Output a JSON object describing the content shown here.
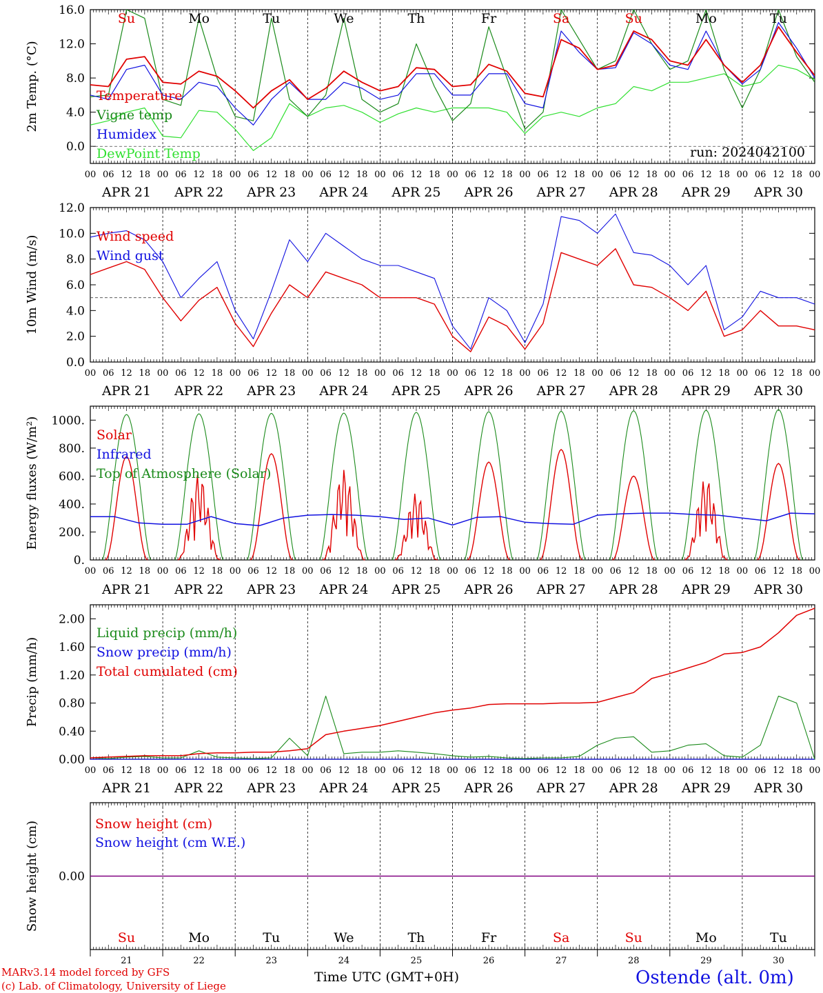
{
  "run_label": "run: 2024042100",
  "days": [
    "Su",
    "Mo",
    "Tu",
    "We",
    "Th",
    "Fr",
    "Sa",
    "Su",
    "Mo",
    "Tu"
  ],
  "day_colors": [
    "#e00000",
    "#000000",
    "#000000",
    "#000000",
    "#000000",
    "#000000",
    "#e00000",
    "#e00000",
    "#000000",
    "#000000"
  ],
  "date_labels": [
    "APR 21",
    "APR 22",
    "APR 23",
    "APR 24",
    "APR 25",
    "APR 26",
    "APR 27",
    "APR 28",
    "APR 29",
    "APR 30"
  ],
  "hour_ticks": [
    "00",
    "06",
    "12",
    "18"
  ],
  "day_numbers": [
    "21",
    "22",
    "23",
    "24",
    "25",
    "26",
    "27",
    "28",
    "29",
    "30"
  ],
  "xlabel": "Time UTC (GMT+0H)",
  "footer": {
    "line1": "MARv3.14 model forced by GFS",
    "line2": "(c) Lab. of Climatology, University of Liege",
    "station": "Ostende (alt. 0m)"
  },
  "colors": {
    "red": "#e00000",
    "green": "#1a8a1a",
    "blue": "#1010e0",
    "lightgreen": "#30e030",
    "purple": "#800080"
  },
  "chart_data": [
    {
      "type": "line",
      "ylabel": "2m Temp. (°C)",
      "ylim": [
        -2,
        16
      ],
      "yticks": [
        "16.0",
        "12.0",
        "8.0",
        "4.0",
        "0.0"
      ],
      "ytick_values": [
        16,
        12,
        8,
        4,
        0
      ],
      "ref_line": 0,
      "x_hours": [
        0,
        6,
        12,
        18,
        24,
        30,
        36,
        42,
        48,
        54,
        60,
        66,
        72,
        78,
        84,
        90,
        96,
        102,
        108,
        114,
        120,
        126,
        132,
        138,
        144,
        150,
        156,
        162,
        168,
        174,
        180,
        186,
        192,
        198,
        204,
        210,
        216,
        222,
        228,
        234,
        240
      ],
      "series": [
        {
          "name": "Temperature",
          "color": "red",
          "values": [
            7.2,
            7.0,
            10.2,
            10.5,
            7.5,
            7.3,
            8.8,
            8.2,
            6.5,
            4.5,
            6.5,
            7.8,
            5.5,
            6.8,
            8.8,
            7.5,
            6.5,
            7.0,
            9.2,
            9.0,
            7.0,
            7.2,
            9.6,
            8.8,
            6.2,
            5.8,
            12.5,
            11.5,
            9.0,
            9.5,
            13.5,
            12.5,
            10.0,
            9.5,
            12.5,
            9.5,
            7.5,
            9.5,
            14.0,
            11.0,
            8.3
          ]
        },
        {
          "name": "Vigne temp",
          "color": "green",
          "values": [
            5.8,
            6.0,
            16.0,
            15.0,
            5.5,
            4.8,
            15.0,
            8.0,
            3.5,
            3.0,
            15.0,
            5.5,
            3.5,
            6.0,
            15.0,
            5.5,
            4.0,
            5.0,
            12.0,
            7.0,
            3.0,
            5.0,
            14.0,
            8.0,
            2.0,
            4.0,
            16.0,
            12.5,
            9.0,
            10.0,
            16.0,
            12.0,
            9.0,
            10.0,
            16.0,
            9.0,
            4.5,
            9.0,
            16.0,
            10.5,
            7.5
          ]
        },
        {
          "name": "Humidex",
          "color": "blue",
          "values": [
            6.0,
            5.5,
            9.0,
            9.5,
            6.0,
            5.5,
            7.5,
            7.0,
            4.5,
            2.5,
            5.5,
            7.5,
            5.5,
            5.5,
            7.5,
            6.8,
            5.5,
            6.0,
            8.5,
            8.5,
            6.0,
            6.0,
            8.5,
            8.5,
            5.0,
            4.5,
            13.5,
            11.0,
            9.0,
            9.2,
            13.3,
            12.0,
            9.5,
            9.0,
            13.5,
            9.5,
            7.3,
            9.0,
            14.5,
            11.5,
            8.0
          ]
        },
        {
          "name": "DewPoint Temp",
          "color": "lightgreen",
          "values": [
            2.5,
            3.0,
            4.0,
            4.5,
            1.2,
            1.0,
            4.2,
            4.0,
            2.0,
            -0.5,
            1.0,
            5.0,
            3.5,
            4.5,
            4.8,
            4.0,
            2.8,
            3.8,
            4.5,
            4.0,
            4.5,
            4.5,
            4.5,
            4.0,
            1.5,
            3.5,
            4.0,
            3.5,
            4.5,
            5.0,
            7.0,
            6.5,
            7.5,
            7.5,
            8.0,
            8.5,
            7.0,
            7.5,
            9.5,
            9.0,
            7.8
          ]
        }
      ]
    },
    {
      "type": "line",
      "ylabel": "10m Wind (m/s)",
      "ylim": [
        0,
        12
      ],
      "yticks": [
        "12.0",
        "10.0",
        "8.0",
        "6.0",
        "4.0",
        "2.0",
        "0.0"
      ],
      "ytick_values": [
        12,
        10,
        8,
        6,
        4,
        2,
        0
      ],
      "ref_line": 5,
      "x_hours": [
        0,
        6,
        12,
        18,
        24,
        30,
        36,
        42,
        48,
        54,
        60,
        66,
        72,
        78,
        84,
        90,
        96,
        102,
        108,
        114,
        120,
        126,
        132,
        138,
        144,
        150,
        156,
        162,
        168,
        174,
        180,
        186,
        192,
        198,
        204,
        210,
        216,
        222,
        228,
        234,
        240
      ],
      "series": [
        {
          "name": "Wind speed",
          "color": "red",
          "values": [
            6.8,
            7.3,
            7.8,
            7.2,
            5.0,
            3.2,
            4.8,
            5.8,
            3.0,
            1.2,
            3.8,
            6.0,
            5.0,
            7.0,
            6.5,
            6.0,
            5.0,
            5.0,
            5.0,
            4.5,
            2.0,
            0.8,
            3.5,
            2.8,
            1.0,
            3.0,
            8.5,
            8.0,
            7.5,
            8.8,
            6.0,
            5.8,
            5.0,
            4.0,
            5.5,
            2.0,
            2.5,
            4.0,
            2.8,
            2.8,
            2.5
          ]
        },
        {
          "name": "Wind gust",
          "color": "blue",
          "values": [
            9.7,
            10.0,
            10.2,
            9.5,
            7.8,
            5.0,
            6.5,
            7.8,
            4.0,
            1.8,
            5.5,
            9.5,
            7.8,
            10.0,
            9.0,
            8.0,
            7.5,
            7.5,
            7.0,
            6.5,
            2.8,
            1.0,
            5.0,
            4.0,
            1.5,
            4.5,
            11.3,
            11.0,
            10.0,
            11.5,
            8.5,
            8.3,
            7.5,
            6.0,
            7.5,
            2.5,
            3.5,
            5.5,
            5.0,
            5.0,
            4.5
          ]
        }
      ]
    },
    {
      "type": "line",
      "ylabel": "Energy fluxes (W/m²)",
      "ylim": [
        0,
        1100
      ],
      "yticks": [
        "1000.",
        "800.",
        "600.",
        "400.",
        "200.",
        "0."
      ],
      "ytick_values": [
        1000,
        800,
        600,
        400,
        200,
        0
      ],
      "ref_line": null,
      "toa_peaks": [
        1040,
        1045,
        1048,
        1050,
        1055,
        1060,
        1063,
        1066,
        1070,
        1075
      ],
      "solar_peaks": [
        740,
        620,
        760,
        650,
        480,
        700,
        790,
        600,
        590,
        690
      ],
      "solar_ragged": [
        false,
        true,
        false,
        true,
        true,
        false,
        false,
        false,
        true,
        false
      ],
      "infrared": [
        310,
        310,
        265,
        255,
        255,
        310,
        260,
        245,
        300,
        320,
        325,
        320,
        310,
        290,
        300,
        250,
        305,
        310,
        270,
        260,
        255,
        320,
        330,
        335,
        335,
        325,
        320,
        300,
        280,
        335,
        330
      ],
      "series": [
        {
          "name": "Solar",
          "color": "red"
        },
        {
          "name": "Infrared",
          "color": "blue"
        },
        {
          "name": "Top of Atmosphere (Solar)",
          "color": "green"
        }
      ]
    },
    {
      "type": "line",
      "ylabel": "Precip (mm/h)",
      "ylim": [
        0,
        2.2
      ],
      "yticks": [
        "2.00",
        "1.60",
        "1.20",
        "0.80",
        "0.40",
        "0.00"
      ],
      "ytick_values": [
        2.0,
        1.6,
        1.2,
        0.8,
        0.4,
        0.0
      ],
      "ref_line": null,
      "x_hours": [
        0,
        6,
        12,
        18,
        24,
        30,
        36,
        42,
        48,
        54,
        60,
        66,
        72,
        78,
        84,
        90,
        96,
        102,
        108,
        114,
        120,
        126,
        132,
        138,
        144,
        150,
        156,
        162,
        168,
        174,
        180,
        186,
        192,
        198,
        204,
        210,
        216,
        222,
        228,
        234,
        240
      ],
      "series": [
        {
          "name": "Liquid precip (mm/h)",
          "color": "green",
          "values": [
            0.02,
            0.01,
            0.03,
            0.04,
            0.02,
            0.02,
            0.12,
            0.03,
            0.02,
            0.01,
            0.02,
            0.3,
            0.05,
            0.9,
            0.08,
            0.1,
            0.1,
            0.12,
            0.1,
            0.08,
            0.05,
            0.03,
            0.04,
            0.02,
            0.01,
            0.02,
            0.02,
            0.04,
            0.2,
            0.3,
            0.32,
            0.1,
            0.12,
            0.2,
            0.22,
            0.05,
            0.03,
            0.2,
            0.9,
            0.8,
            0.0
          ]
        },
        {
          "name": "Snow precip (mm/h)",
          "color": "blue",
          "values": [
            0,
            0,
            0,
            0,
            0,
            0,
            0,
            0,
            0,
            0,
            0,
            0,
            0,
            0,
            0,
            0,
            0,
            0,
            0,
            0,
            0,
            0,
            0,
            0,
            0,
            0,
            0,
            0,
            0,
            0,
            0,
            0,
            0,
            0,
            0,
            0,
            0,
            0,
            0,
            0,
            0
          ]
        },
        {
          "name": "Total cumulated (cm)",
          "color": "red",
          "values": [
            0.02,
            0.03,
            0.04,
            0.05,
            0.05,
            0.05,
            0.08,
            0.09,
            0.09,
            0.1,
            0.1,
            0.12,
            0.15,
            0.35,
            0.4,
            0.44,
            0.48,
            0.54,
            0.6,
            0.66,
            0.7,
            0.73,
            0.78,
            0.79,
            0.79,
            0.79,
            0.8,
            0.8,
            0.81,
            0.88,
            0.95,
            1.15,
            1.22,
            1.3,
            1.38,
            1.5,
            1.52,
            1.6,
            1.8,
            2.05,
            2.15
          ]
        }
      ]
    },
    {
      "type": "line",
      "ylabel": "Snow height (cm)",
      "ylim": [
        -1,
        1
      ],
      "yticks": [
        "0.00"
      ],
      "ytick_values": [
        0
      ],
      "ref_line": null,
      "series": [
        {
          "name": "Snow height (cm)",
          "color": "red",
          "values": [
            0,
            0
          ]
        },
        {
          "name": "Snow height (cm W.E.)",
          "color": "blue",
          "values": [
            0,
            0
          ]
        }
      ]
    }
  ]
}
